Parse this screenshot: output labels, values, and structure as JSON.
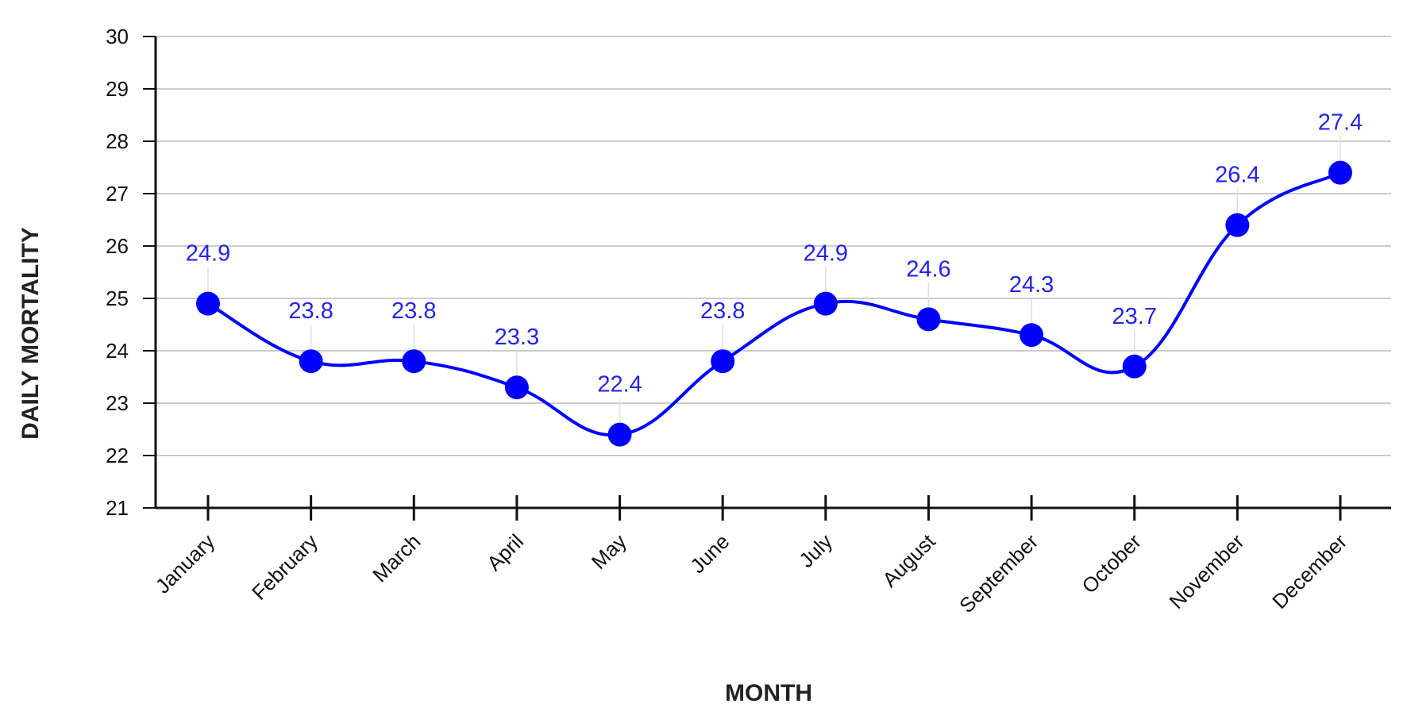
{
  "chart_data": {
    "type": "line",
    "title": "",
    "xlabel": "MONTH",
    "ylabel": "DAILY MORTALITY",
    "categories": [
      "January",
      "February",
      "March",
      "April",
      "May",
      "June",
      "July",
      "August",
      "September",
      "October",
      "November",
      "December"
    ],
    "series": [
      {
        "values": [
          24.9,
          23.8,
          23.8,
          23.3,
          22.4,
          23.8,
          24.9,
          24.6,
          24.3,
          23.7,
          26.4,
          27.4
        ]
      }
    ],
    "data_labels": [
      "24.9",
      "23.8",
      "23.8",
      "23.3",
      "22.4",
      "23.8",
      "24.9",
      "24.6",
      "24.3",
      "23.7",
      "26.4",
      "27.4"
    ],
    "y_ticks": [
      "21",
      "22",
      "23",
      "24",
      "25",
      "26",
      "27",
      "28",
      "29",
      "30"
    ],
    "ylim": [
      21,
      30
    ],
    "grid": "horizontal",
    "smooth": true,
    "colors": {
      "series": "#0000ff",
      "label": "#2323f0",
      "grid": "#cccccc",
      "axis": "#111111"
    }
  }
}
